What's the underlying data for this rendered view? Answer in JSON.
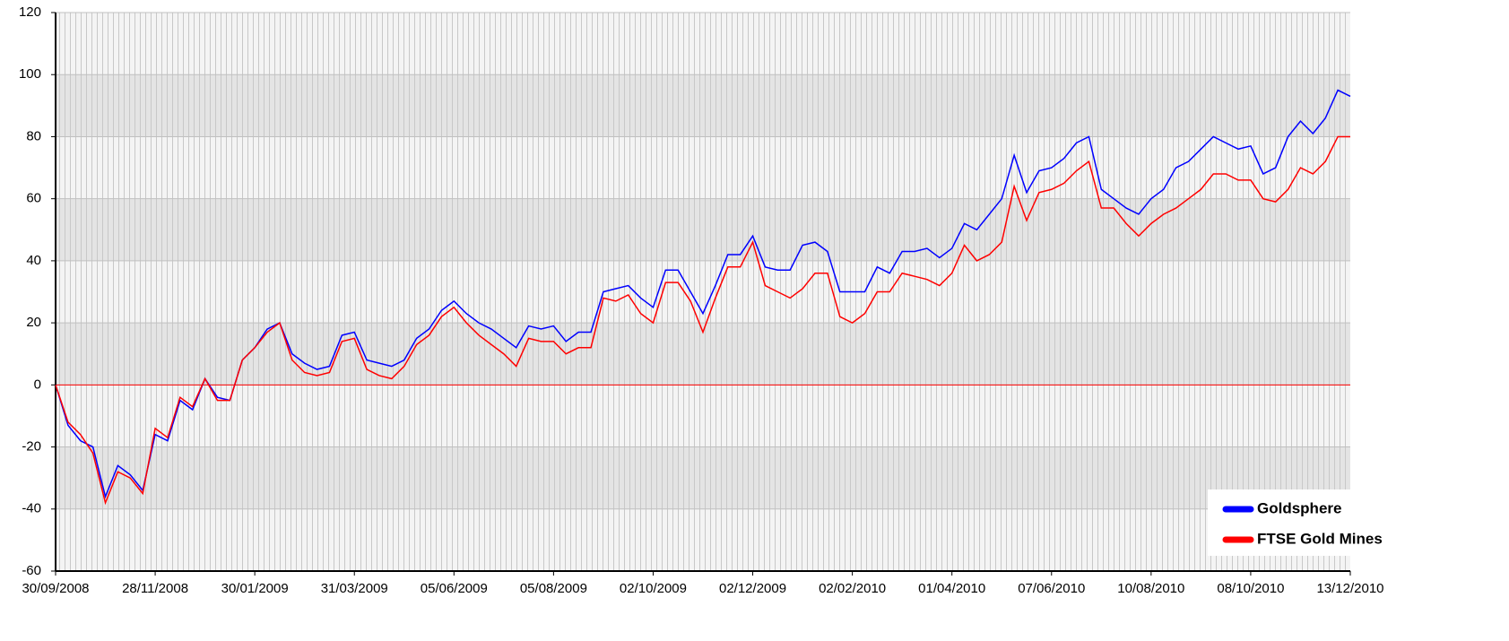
{
  "chart_data": {
    "type": "line",
    "categories": [
      "30/09/2008",
      null,
      null,
      null,
      null,
      null,
      null,
      null,
      "28/11/2008",
      null,
      null,
      null,
      null,
      null,
      null,
      null,
      "30/01/2009",
      null,
      null,
      null,
      null,
      null,
      null,
      null,
      "31/03/2009",
      null,
      null,
      null,
      null,
      null,
      null,
      null,
      "05/06/2009",
      null,
      null,
      null,
      null,
      null,
      null,
      null,
      "05/08/2009",
      null,
      null,
      null,
      null,
      null,
      null,
      null,
      "02/10/2009",
      null,
      null,
      null,
      null,
      null,
      null,
      null,
      "02/12/2009",
      null,
      null,
      null,
      null,
      null,
      null,
      null,
      "02/02/2010",
      null,
      null,
      null,
      null,
      null,
      null,
      null,
      "01/04/2010",
      null,
      null,
      null,
      null,
      null,
      null,
      null,
      "07/06/2010",
      null,
      null,
      null,
      null,
      null,
      null,
      null,
      "10/08/2010",
      null,
      null,
      null,
      null,
      null,
      null,
      null,
      "08/10/2010",
      null,
      null,
      null,
      null,
      null,
      null,
      null,
      "13/12/2010"
    ],
    "series": [
      {
        "name": "Goldsphere",
        "color": "#0000ff",
        "values": [
          0,
          -13,
          -18,
          -20,
          -36,
          -26,
          -29,
          -34,
          -16,
          -18,
          -5,
          -8,
          2,
          -4,
          -5,
          8,
          12,
          18,
          20,
          10,
          7,
          5,
          6,
          16,
          17,
          8,
          7,
          6,
          8,
          15,
          18,
          24,
          27,
          23,
          20,
          18,
          15,
          12,
          19,
          18,
          19,
          14,
          17,
          17,
          30,
          31,
          32,
          28,
          25,
          37,
          37,
          30,
          23,
          32,
          42,
          42,
          48,
          38,
          37,
          37,
          45,
          46,
          43,
          30,
          30,
          30,
          38,
          36,
          43,
          43,
          44,
          41,
          44,
          52,
          50,
          55,
          60,
          74,
          62,
          69,
          70,
          73,
          78,
          80,
          63,
          60,
          57,
          55,
          60,
          63,
          70,
          72,
          76,
          80,
          78,
          76,
          77,
          68,
          70,
          80,
          85,
          81,
          86,
          95,
          93
        ]
      },
      {
        "name": "FTSE Gold Mines",
        "color": "#ff0000",
        "values": [
          0,
          -12,
          -16,
          -22,
          -38,
          -28,
          -30,
          -35,
          -14,
          -17,
          -4,
          -7,
          2,
          -5,
          -5,
          8,
          12,
          17,
          20,
          8,
          4,
          3,
          4,
          14,
          15,
          5,
          3,
          2,
          6,
          13,
          16,
          22,
          25,
          20,
          16,
          13,
          10,
          6,
          15,
          14,
          14,
          10,
          12,
          12,
          28,
          27,
          29,
          23,
          20,
          33,
          33,
          27,
          17,
          28,
          38,
          38,
          46,
          32,
          30,
          28,
          31,
          36,
          36,
          22,
          20,
          23,
          30,
          30,
          36,
          35,
          34,
          32,
          36,
          45,
          40,
          42,
          46,
          64,
          53,
          62,
          63,
          65,
          69,
          72,
          57,
          57,
          52,
          48,
          52,
          55,
          57,
          60,
          63,
          68,
          68,
          66,
          66,
          60,
          59,
          63,
          70,
          68,
          72,
          80,
          80
        ]
      }
    ],
    "ylim": [
      -60,
      120
    ],
    "yticks": [
      -60,
      -40,
      -20,
      0,
      20,
      40,
      60,
      80,
      100,
      120
    ],
    "grid": true,
    "legend": "lower right"
  }
}
